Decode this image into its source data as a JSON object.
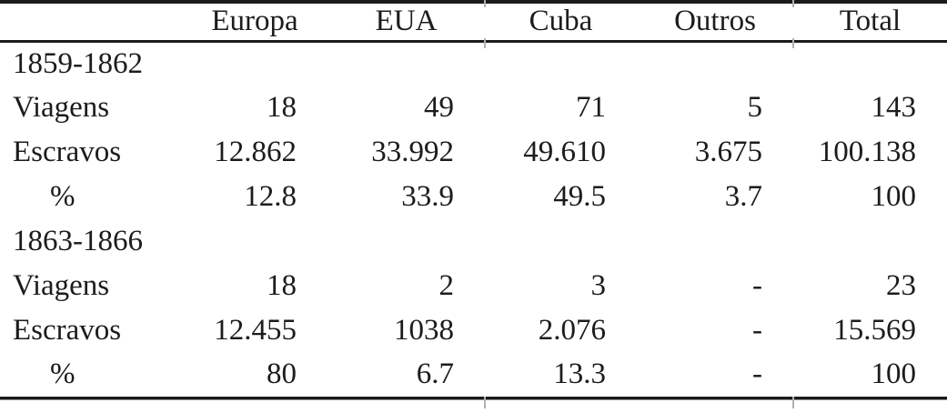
{
  "table": {
    "columns": [
      "",
      "Europa",
      "EUA",
      "Cuba",
      "Outros",
      "Total"
    ],
    "rows": [
      {
        "label": "1859-1862",
        "values": [
          "",
          "",
          "",
          "",
          ""
        ]
      },
      {
        "label": "Viagens",
        "values": [
          "18",
          "49",
          "71",
          "5",
          "143"
        ]
      },
      {
        "label": "Escravos",
        "values": [
          "12.862",
          "33.992",
          "49.610",
          "3.675",
          "100.138"
        ]
      },
      {
        "label": "%",
        "values": [
          "12.8",
          "33.9",
          "49.5",
          "3.7",
          "100"
        ]
      },
      {
        "label": "1863-1866",
        "values": [
          "",
          "",
          "",
          "",
          ""
        ]
      },
      {
        "label": "Viagens",
        "values": [
          "18",
          "2",
          "3",
          "-",
          "23"
        ]
      },
      {
        "label": "Escravos",
        "values": [
          "12.455",
          "1038",
          "2.076",
          "-",
          "15.569"
        ]
      },
      {
        "label": "%",
        "values": [
          "80",
          "6.7",
          "13.3",
          "-",
          "100"
        ]
      }
    ],
    "colors": {
      "text": "#1c1c1c",
      "rule": "#1b1b1b",
      "tick": "#b0b0b0",
      "background": "#ffffff"
    }
  }
}
